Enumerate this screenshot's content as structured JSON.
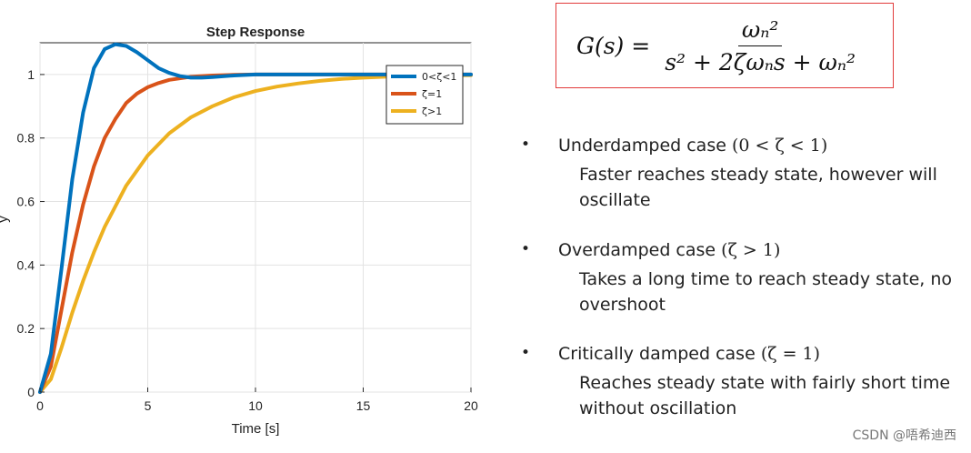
{
  "chart_data": {
    "type": "line",
    "title": "Step Response",
    "xlabel": "Time [s]",
    "ylabel": "y",
    "xlim": [
      0,
      20
    ],
    "ylim": [
      0,
      1.1
    ],
    "xticks": [
      0,
      5,
      10,
      15,
      20
    ],
    "yticks": [
      0,
      0.2,
      0.4,
      0.6,
      0.8,
      1
    ],
    "grid": true,
    "legend_position": "top-right",
    "series": [
      {
        "name": "0<ζ<1",
        "color": "#0072bd",
        "x": [
          0,
          0.5,
          1,
          1.5,
          2,
          2.5,
          3,
          3.5,
          4,
          4.5,
          5,
          5.5,
          6,
          6.5,
          7,
          7.5,
          8,
          9,
          10,
          12,
          14,
          16,
          18,
          20
        ],
        "y": [
          0,
          0.12,
          0.39,
          0.67,
          0.88,
          1.02,
          1.08,
          1.095,
          1.09,
          1.07,
          1.045,
          1.02,
          1.005,
          0.995,
          0.99,
          0.99,
          0.992,
          0.997,
          1.0,
          1.0,
          1.0,
          1.0,
          1.0,
          1.0
        ]
      },
      {
        "name": "ζ=1",
        "color": "#d95319",
        "x": [
          0,
          0.5,
          1,
          1.5,
          2,
          2.5,
          3,
          3.5,
          4,
          4.5,
          5,
          5.5,
          6,
          7,
          8,
          9,
          10,
          12,
          14,
          16,
          18,
          20
        ],
        "y": [
          0,
          0.08,
          0.26,
          0.44,
          0.59,
          0.71,
          0.8,
          0.86,
          0.91,
          0.94,
          0.96,
          0.973,
          0.983,
          0.993,
          0.997,
          0.999,
          1.0,
          1.0,
          1.0,
          1.0,
          1.0,
          1.0
        ]
      },
      {
        "name": "ζ>1",
        "color": "#edb120",
        "x": [
          0,
          0.5,
          1,
          1.5,
          2,
          2.5,
          3,
          4,
          5,
          6,
          7,
          8,
          9,
          10,
          11,
          12,
          13,
          14,
          15,
          16,
          17,
          18,
          19,
          20
        ],
        "y": [
          0,
          0.04,
          0.14,
          0.25,
          0.35,
          0.44,
          0.52,
          0.65,
          0.745,
          0.815,
          0.865,
          0.9,
          0.928,
          0.948,
          0.962,
          0.972,
          0.98,
          0.986,
          0.99,
          0.993,
          0.995,
          0.996,
          0.997,
          0.998
        ]
      }
    ]
  },
  "formula": {
    "lhs": "G(s) =",
    "numerator": "ωₙ²",
    "denominator": "s² + 2ζωₙs + ωₙ²"
  },
  "bullets": [
    {
      "symbol": "•",
      "heading": "Underdamped case",
      "condition": "(0 < ζ < 1)",
      "description": "Faster reaches steady state, however will oscillate"
    },
    {
      "symbol": "•",
      "heading": "Overdamped case",
      "condition": "(ζ > 1)",
      "description": "Takes a long time to reach steady state, no overshoot"
    },
    {
      "symbol": "•",
      "heading": "Critically damped case",
      "condition": "(ζ = 1)",
      "description": "Reaches steady state with fairly short time without oscillation"
    }
  ],
  "watermark": "CSDN @唔希迪西"
}
